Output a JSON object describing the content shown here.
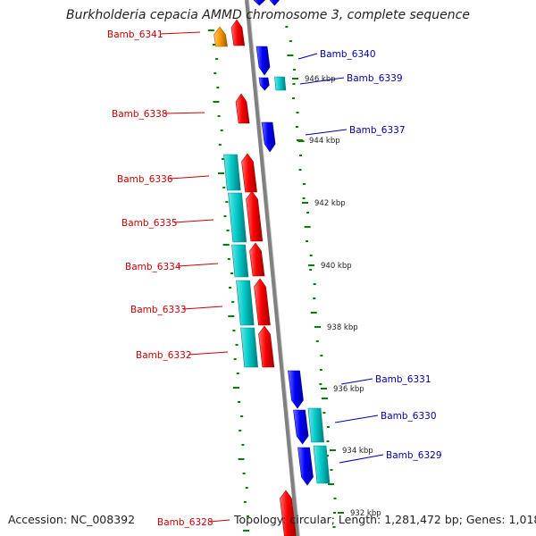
{
  "title": "Burkholderia cepacia AMMD chromosome 3, complete sequence",
  "footer": {
    "accession": "Accession: NC_008392",
    "summary": "Topology: circular; Length: 1,281,472 bp; Genes: 1,018"
  },
  "colors": {
    "forward_cds": "#ff0000",
    "reverse_cds": "#0000ff",
    "rna_or_orf": "#00cccc",
    "other_feature": "#ff9900",
    "backbone": "#808080",
    "gc_ticks": "#008000",
    "label_left": "#cc0000",
    "label_right": "#0000aa"
  },
  "scale_labels": [
    "946 kbp",
    "944 kbp",
    "942 kbp",
    "940 kbp",
    "938 kbp",
    "936 kbp",
    "934 kbp",
    "932 kbp"
  ],
  "genes_left": [
    "Bamb_6341",
    "Bamb_6338",
    "Bamb_6336",
    "Bamb_6335",
    "Bamb_6334",
    "Bamb_6333",
    "Bamb_6332",
    "Bamb_6328"
  ],
  "genes_right": [
    "Bamb_6340",
    "Bamb_6339",
    "Bamb_6337",
    "Bamb_6331",
    "Bamb_6330",
    "Bamb_6329"
  ]
}
